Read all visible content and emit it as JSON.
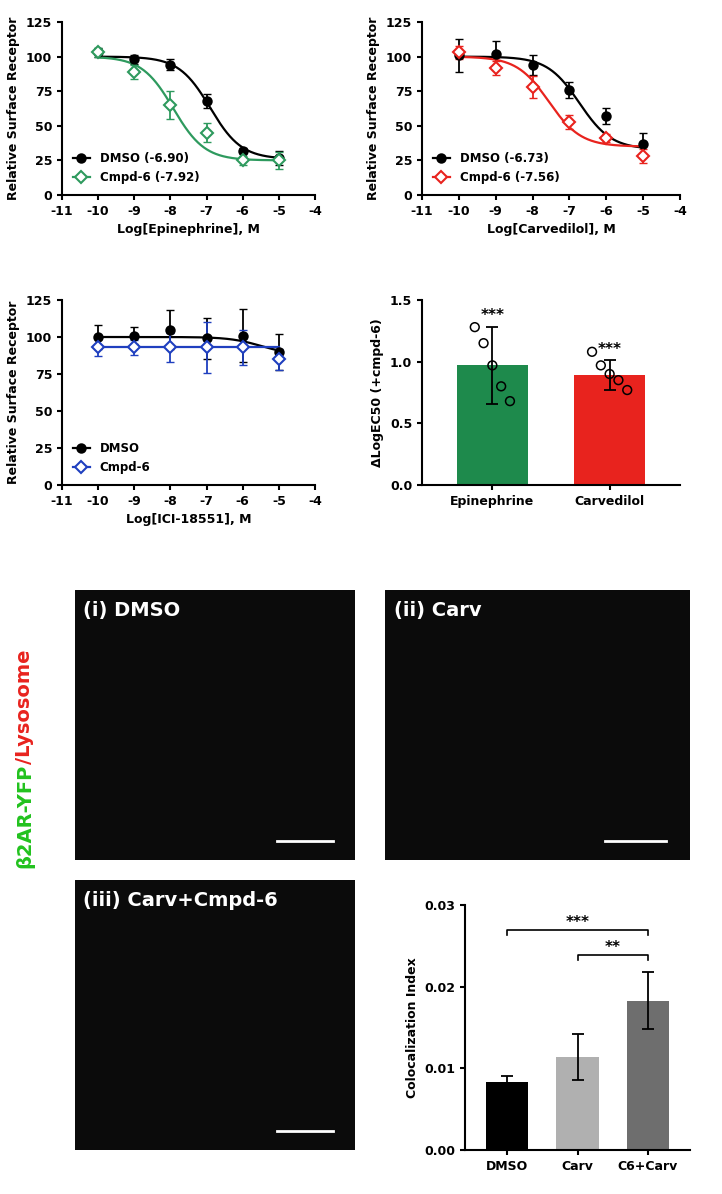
{
  "chart_data": [
    {
      "type": "dose_response",
      "xlabel": "Log[Epinephrine], M",
      "ylabel": "Relative Surface Receptor",
      "xlim": [
        -11,
        -4
      ],
      "xticks": [
        -11,
        -10,
        -9,
        -8,
        -7,
        -6,
        -5,
        -4
      ],
      "ylim": [
        0,
        125
      ],
      "yticks": [
        0,
        25,
        50,
        75,
        100,
        125
      ],
      "legend": "lower left",
      "x": [
        -10,
        -9,
        -8,
        -7,
        -6,
        -5
      ],
      "series": [
        {
          "name": "DMSO (-6.90)",
          "color": "#000000",
          "marker": "circle",
          "values": [
            103,
            98,
            94,
            68,
            32,
            27
          ],
          "errors": [
            3,
            3,
            4,
            5,
            2,
            5
          ],
          "fit": {
            "top": 100,
            "bottom": 26,
            "log_ec50": -6.9,
            "hill_slope": 1
          }
        },
        {
          "name": "Cmpd-6 (-7.92)",
          "color": "#2e9a5e",
          "marker": "open_diamond",
          "values": [
            103,
            89,
            65,
            45,
            25,
            25
          ],
          "errors": [
            3,
            5,
            10,
            7,
            3,
            6
          ],
          "fit": {
            "top": 100,
            "bottom": 25,
            "log_ec50": -7.92,
            "hill_slope": 1
          }
        }
      ]
    },
    {
      "type": "dose_response",
      "xlabel": "Log[Carvedilol], M",
      "ylabel": "Relative Surface Receptor",
      "xlim": [
        -11,
        -4
      ],
      "xticks": [
        -11,
        -10,
        -9,
        -8,
        -7,
        -6,
        -5,
        -4
      ],
      "ylim": [
        0,
        125
      ],
      "yticks": [
        0,
        25,
        50,
        75,
        100,
        125
      ],
      "legend": "lower left",
      "x": [
        -10,
        -9,
        -8,
        -7,
        -6,
        -5
      ],
      "series": [
        {
          "name": "DMSO (-6.73)",
          "color": "#000000",
          "marker": "circle",
          "values": [
            101,
            102,
            94,
            76,
            57,
            37
          ],
          "errors": [
            12,
            9,
            7,
            6,
            6,
            8
          ],
          "fit": {
            "top": 100,
            "bottom": 33,
            "log_ec50": -6.73,
            "hill_slope": 1
          }
        },
        {
          "name": "Cmpd-6 (-7.56)",
          "color": "#e8231e",
          "marker": "open_diamond",
          "values": [
            103,
            92,
            78,
            53,
            41,
            28
          ],
          "errors": [
            5,
            5,
            8,
            5,
            3,
            5
          ],
          "fit": {
            "top": 100,
            "bottom": 35,
            "log_ec50": -7.56,
            "hill_slope": 1
          }
        }
      ]
    },
    {
      "type": "dose_response",
      "xlabel": "Log[ICI-18551], M",
      "ylabel": "Relative Surface Receptor",
      "xlim": [
        -11,
        -4
      ],
      "xticks": [
        -11,
        -10,
        -9,
        -8,
        -7,
        -6,
        -5,
        -4
      ],
      "ylim": [
        0,
        125
      ],
      "yticks": [
        0,
        25,
        50,
        75,
        100,
        125
      ],
      "legend": "lower left",
      "x": [
        -10,
        -9,
        -8,
        -7,
        -6,
        -5
      ],
      "series": [
        {
          "name": "DMSO",
          "color": "#000000",
          "marker": "circle",
          "values": [
            100,
            101,
            105,
            99,
            101,
            90
          ],
          "errors": [
            8,
            6,
            13,
            14,
            18,
            12
          ],
          "fit": {
            "top": 100,
            "bottom": 88,
            "log_ec50": -5.5,
            "hill_slope": 1
          }
        },
        {
          "name": "Cmpd-6",
          "color": "#1f3fbf",
          "marker": "open_diamond",
          "values": [
            93,
            93,
            93,
            93,
            93,
            85
          ],
          "errors": [
            6,
            5,
            10,
            17,
            12,
            7
          ],
          "fit": {
            "top": 93,
            "bottom": 93,
            "log_ec50": -7,
            "hill_slope": 1
          }
        }
      ]
    },
    {
      "type": "bar",
      "ylabel": "ΔLogEC50 (+cmpd-6)",
      "categories": [
        "Epinephrine",
        "Carvedilol"
      ],
      "values": [
        0.97,
        0.89
      ],
      "errors": [
        0.31,
        0.12
      ],
      "colors": [
        "#1e8a4c",
        "#e8231e"
      ],
      "points": [
        [
          1.28,
          1.15,
          0.97,
          0.8,
          0.68
        ],
        [
          1.08,
          0.97,
          0.9,
          0.85,
          0.77
        ]
      ],
      "significance": [
        "***",
        "***"
      ],
      "ylim": [
        0,
        1.5
      ],
      "yticks": [
        {
          "value": 0,
          "label": "0.0"
        },
        {
          "value": 0.5,
          "label": "0.5"
        },
        {
          "value": 1.0,
          "label": "1.0"
        },
        {
          "value": 1.5,
          "label": "1.5"
        }
      ]
    },
    {
      "type": "bar",
      "ylabel": "Colocalization Index",
      "categories": [
        "DMSO",
        "Carv",
        "C6+Carv"
      ],
      "values": [
        0.0083,
        0.0114,
        0.0183
      ],
      "errors": [
        0.0008,
        0.0028,
        0.0035
      ],
      "colors": [
        "#000000",
        "#b0b0b0",
        "#6e6e6e"
      ],
      "comparisons": [
        {
          "from": "Carv",
          "to": "C6+Carv",
          "label": "**"
        },
        {
          "from": "DMSO",
          "to": "C6+Carv",
          "label": "***"
        }
      ],
      "ylim": [
        0,
        0.03
      ],
      "yticks": [
        {
          "value": 0,
          "label": "0.00"
        },
        {
          "value": 0.01,
          "label": "0.01"
        },
        {
          "value": 0.02,
          "label": "0.02"
        },
        {
          "value": 0.03,
          "label": "0.03"
        }
      ]
    }
  ],
  "images": [
    {
      "label": "(i) DMSO"
    },
    {
      "label": "(ii) Carv"
    },
    {
      "label": "(iii) Carv+Cmpd-6"
    }
  ],
  "stain_label": [
    {
      "text": "β2AR-YFP",
      "color": "#22c21e"
    },
    {
      "text": "/Lysosome",
      "color": "#e8231e"
    }
  ]
}
